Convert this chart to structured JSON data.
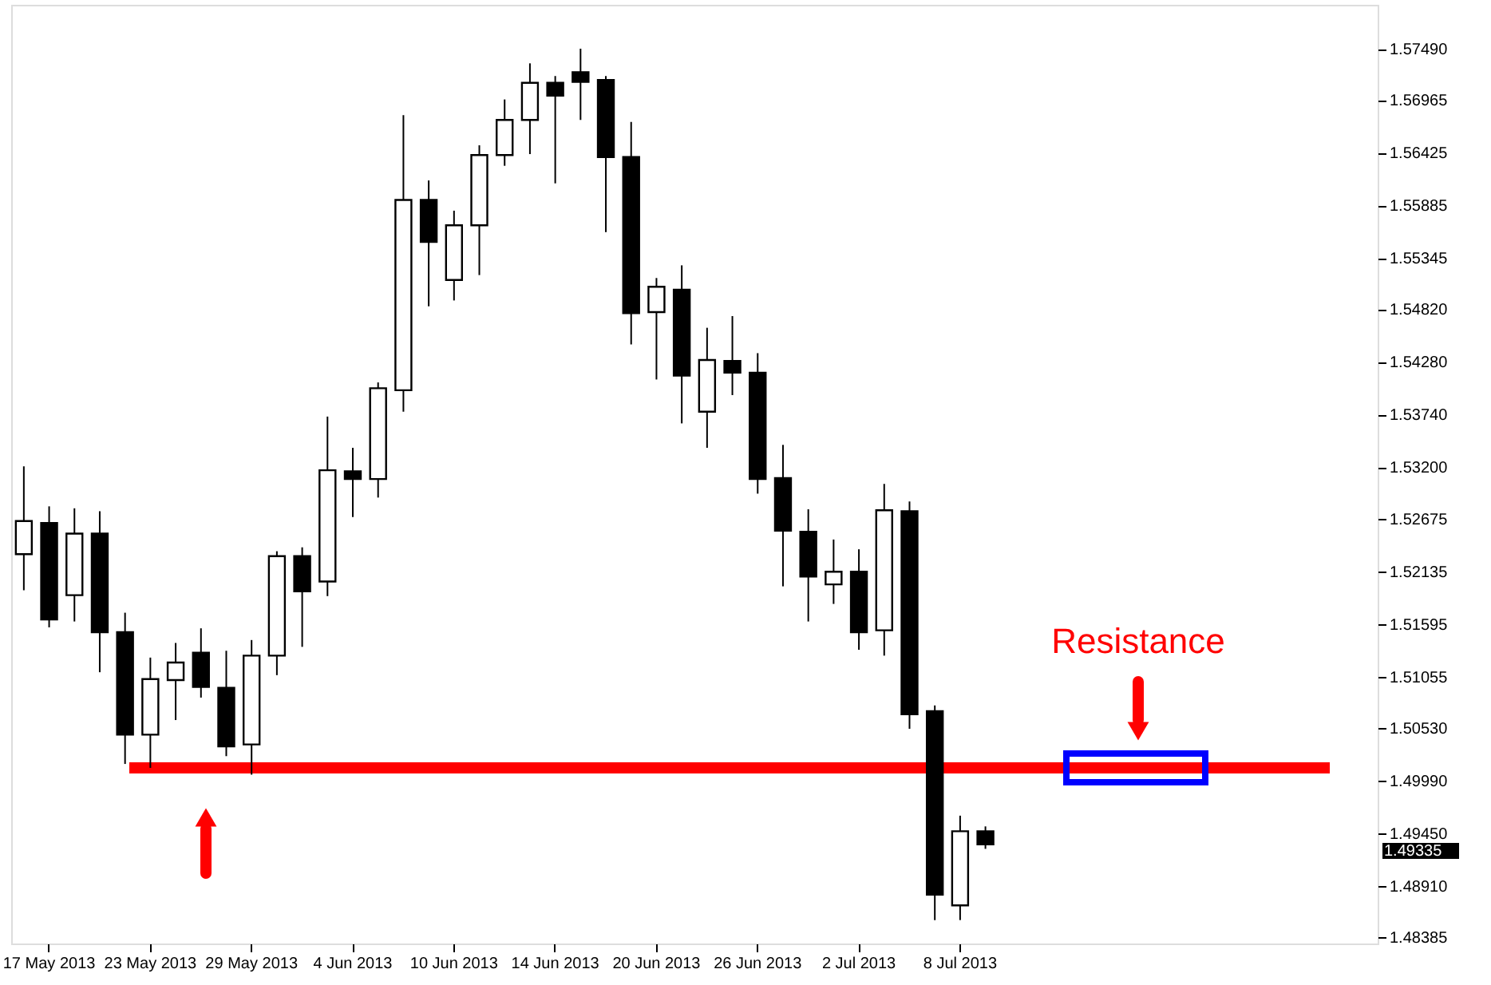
{
  "chart_data": {
    "type": "candlestick",
    "categories": [
      null,
      "17 May 2013",
      null,
      null,
      null,
      "23 May 2013",
      null,
      null,
      null,
      "29 May 2013",
      null,
      null,
      null,
      "4 Jun 2013",
      null,
      null,
      null,
      "10 Jun 2013",
      null,
      null,
      null,
      "14 Jun 2013",
      null,
      null,
      null,
      "20 Jun 2013",
      null,
      null,
      null,
      "26 Jun 2013",
      null,
      null,
      null,
      "2 Jul 2013",
      null,
      null,
      null,
      "8 Jul 2013",
      null,
      null,
      null,
      null,
      null,
      null,
      null,
      null,
      null,
      null,
      null,
      null,
      null,
      null,
      null,
      null
    ],
    "ohlc": [
      [
        1.5231,
        1.5321,
        1.5194,
        1.5265
      ],
      [
        1.5263,
        1.528,
        1.5156,
        1.5164
      ],
      [
        1.5189,
        1.5278,
        1.5162,
        1.5252
      ],
      [
        1.5252,
        1.5275,
        1.511,
        1.5151
      ],
      [
        1.5151,
        1.5171,
        1.5016,
        1.5046
      ],
      [
        1.5046,
        1.5125,
        1.5012,
        1.5103
      ],
      [
        1.5102,
        1.514,
        1.5061,
        1.512
      ],
      [
        1.513,
        1.5155,
        1.5084,
        1.5095
      ],
      [
        1.5094,
        1.5132,
        1.5024,
        1.5034
      ],
      [
        1.5036,
        1.5143,
        1.5005,
        1.5127
      ],
      [
        1.5127,
        1.5234,
        1.5107,
        1.5229
      ],
      [
        1.5229,
        1.5238,
        1.5136,
        1.5193
      ],
      [
        1.5203,
        1.5372,
        1.5188,
        1.5317
      ],
      [
        1.5316,
        1.534,
        1.5269,
        1.5308
      ],
      [
        1.5308,
        1.5407,
        1.5289,
        1.5401
      ],
      [
        1.5399,
        1.5681,
        1.5377,
        1.5594
      ],
      [
        1.5594,
        1.5614,
        1.5485,
        1.5551
      ],
      [
        1.5512,
        1.5583,
        1.5491,
        1.5568
      ],
      [
        1.5568,
        1.565,
        1.5517,
        1.564
      ],
      [
        1.564,
        1.5697,
        1.5629,
        1.5676
      ],
      [
        1.5676,
        1.5734,
        1.5641,
        1.5714
      ],
      [
        1.5714,
        1.5721,
        1.5611,
        1.5701
      ],
      [
        1.5725,
        1.5749,
        1.5676,
        1.5715
      ],
      [
        1.5717,
        1.5721,
        1.5561,
        1.5638
      ],
      [
        1.5638,
        1.5674,
        1.5446,
        1.5478
      ],
      [
        1.5479,
        1.5514,
        1.541,
        1.5505
      ],
      [
        1.5502,
        1.5527,
        1.5365,
        1.5414
      ],
      [
        1.5377,
        1.5463,
        1.534,
        1.543
      ],
      [
        1.5429,
        1.5475,
        1.5394,
        1.5417
      ],
      [
        1.5417,
        1.5437,
        1.5293,
        1.5308
      ],
      [
        1.5309,
        1.5343,
        1.5198,
        1.5255
      ],
      [
        1.5254,
        1.5277,
        1.5162,
        1.5208
      ],
      [
        1.52,
        1.5246,
        1.518,
        1.5213
      ],
      [
        1.5213,
        1.5236,
        1.5133,
        1.5151
      ],
      [
        1.5153,
        1.5303,
        1.5127,
        1.5276
      ],
      [
        1.5275,
        1.5285,
        1.5052,
        1.5067
      ],
      [
        1.507,
        1.5076,
        1.4856,
        1.4882
      ],
      [
        1.4871,
        1.4963,
        1.4856,
        1.4947
      ],
      [
        1.4947,
        1.4952,
        1.4929,
        1.49335
      ],
      null,
      null,
      null,
      null,
      null,
      null,
      null,
      null,
      null,
      null,
      null,
      null,
      null,
      null,
      null
    ],
    "color": "#000000",
    "ylim": [
      1.4832,
      1.5794
    ],
    "yticks": [
      {
        "value": 1.5749,
        "label": "1.57490"
      },
      {
        "value": 1.56965,
        "label": "1.56965"
      },
      {
        "value": 1.56425,
        "label": "1.56425"
      },
      {
        "value": 1.55885,
        "label": "1.55885"
      },
      {
        "value": 1.55345,
        "label": "1.55345"
      },
      {
        "value": 1.5482,
        "label": "1.54820"
      },
      {
        "value": 1.5428,
        "label": "1.54280"
      },
      {
        "value": 1.5374,
        "label": "1.53740"
      },
      {
        "value": 1.532,
        "label": "1.53200"
      },
      {
        "value": 1.52675,
        "label": "1.52675"
      },
      {
        "value": 1.52135,
        "label": "1.52135"
      },
      {
        "value": 1.51595,
        "label": "1.51595"
      },
      {
        "value": 1.51055,
        "label": "1.51055"
      },
      {
        "value": 1.5053,
        "label": "1.50530"
      },
      {
        "value": 1.4999,
        "label": "1.49990"
      },
      {
        "value": 1.4945,
        "label": "1.49450"
      },
      {
        "value": 1.4891,
        "label": "1.48910"
      },
      {
        "value": 1.48385,
        "label": "1.48385"
      }
    ],
    "ref_lines": [
      {
        "axis": "y",
        "value": 1.5012,
        "label": "Resistance",
        "color": "#ff0000"
      }
    ],
    "annotations": [
      "1.49335"
    ],
    "grid": false
  }
}
